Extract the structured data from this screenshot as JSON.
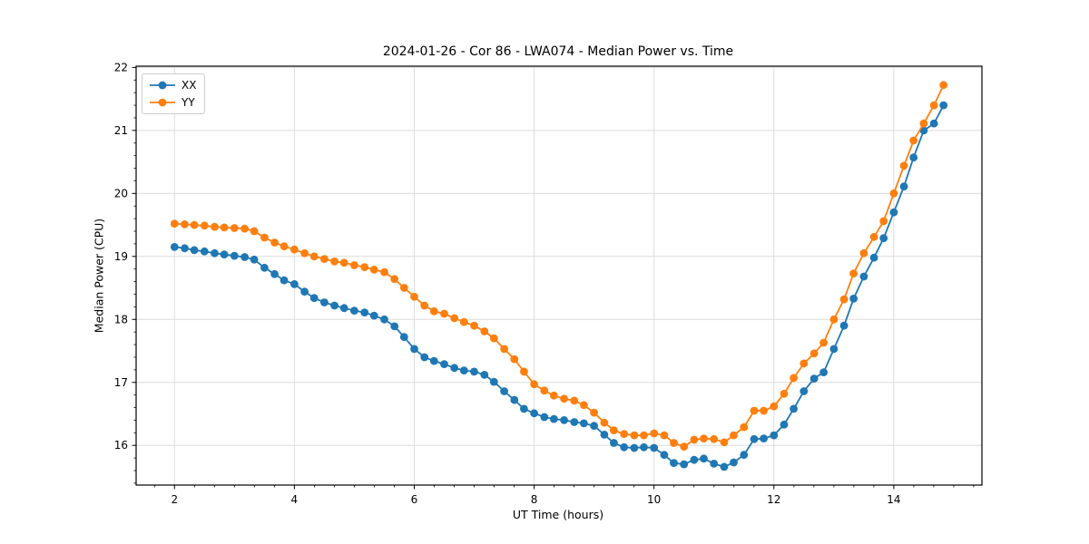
{
  "chart_data": {
    "type": "line",
    "title": "2024-01-26 - Cor 86 - LWA074 - Median Power vs. Time",
    "xlabel": "UT Time (hours)",
    "ylabel": "Median Power (CPU)",
    "xlim": [
      1.36,
      15.47
    ],
    "ylim": [
      15.37,
      22.02
    ],
    "x_ticks": [
      2,
      4,
      6,
      8,
      10,
      12,
      14
    ],
    "y_ticks": [
      16,
      17,
      18,
      19,
      20,
      21,
      22
    ],
    "x_minor_step": 0.33333,
    "y_minor_step": 0.2,
    "grid": "major",
    "grid_color": "#dcdcdc",
    "spine_color": "#000000",
    "legend_position": "upper-left",
    "x": [
      2.0,
      2.17,
      2.33,
      2.5,
      2.67,
      2.83,
      3.0,
      3.17,
      3.33,
      3.5,
      3.67,
      3.83,
      4.0,
      4.17,
      4.33,
      4.5,
      4.67,
      4.83,
      5.0,
      5.17,
      5.33,
      5.5,
      5.67,
      5.83,
      6.0,
      6.17,
      6.33,
      6.5,
      6.67,
      6.83,
      7.0,
      7.17,
      7.33,
      7.5,
      7.67,
      7.83,
      8.0,
      8.17,
      8.33,
      8.5,
      8.67,
      8.83,
      9.0,
      9.17,
      9.33,
      9.5,
      9.67,
      9.83,
      10.0,
      10.17,
      10.33,
      10.5,
      10.67,
      10.83,
      11.0,
      11.17,
      11.33,
      11.5,
      11.67,
      11.83,
      12.0,
      12.17,
      12.33,
      12.5,
      12.67,
      12.83,
      13.0,
      13.17,
      13.33,
      13.5,
      13.67,
      13.83,
      14.0,
      14.17,
      14.33,
      14.5,
      14.67,
      14.83
    ],
    "series": [
      {
        "name": "XX",
        "color": "#1f77b4",
        "marker": "circle",
        "values": [
          19.15,
          19.13,
          19.1,
          19.08,
          19.05,
          19.03,
          19.01,
          18.99,
          18.95,
          18.82,
          18.72,
          18.62,
          18.56,
          18.44,
          18.34,
          18.27,
          18.22,
          18.18,
          18.14,
          18.11,
          18.06,
          18.0,
          17.89,
          17.72,
          17.53,
          17.4,
          17.34,
          17.29,
          17.23,
          17.19,
          17.17,
          17.12,
          17.01,
          16.86,
          16.72,
          16.58,
          16.51,
          16.45,
          16.42,
          16.4,
          16.37,
          16.35,
          16.31,
          16.17,
          16.04,
          15.97,
          15.96,
          15.97,
          15.96,
          15.85,
          15.72,
          15.7,
          15.77,
          15.79,
          15.71,
          15.66,
          15.73,
          15.85,
          16.1,
          16.11,
          16.16,
          16.33,
          16.58,
          16.86,
          17.06,
          17.16,
          17.53,
          17.9,
          18.33,
          18.68,
          18.98,
          19.29,
          19.7,
          20.11,
          20.57,
          21.0,
          21.11,
          21.4
        ]
      },
      {
        "name": "YY",
        "color": "#ff7f0e",
        "marker": "circle",
        "values": [
          19.52,
          19.51,
          19.5,
          19.49,
          19.47,
          19.46,
          19.45,
          19.44,
          19.4,
          19.3,
          19.22,
          19.16,
          19.11,
          19.05,
          19.0,
          18.96,
          18.92,
          18.9,
          18.86,
          18.83,
          18.79,
          18.75,
          18.64,
          18.5,
          18.36,
          18.22,
          18.13,
          18.09,
          18.02,
          17.96,
          17.9,
          17.81,
          17.7,
          17.53,
          17.37,
          17.17,
          16.97,
          16.87,
          16.79,
          16.74,
          16.71,
          16.64,
          16.52,
          16.36,
          16.24,
          16.18,
          16.16,
          16.16,
          16.19,
          16.16,
          16.04,
          15.98,
          16.09,
          16.11,
          16.1,
          16.05,
          16.16,
          16.29,
          16.55,
          16.55,
          16.62,
          16.82,
          17.07,
          17.3,
          17.46,
          17.63,
          18.0,
          18.32,
          18.73,
          19.05,
          19.31,
          19.56,
          20.0,
          20.44,
          20.84,
          21.11,
          21.4,
          21.72
        ]
      }
    ]
  }
}
